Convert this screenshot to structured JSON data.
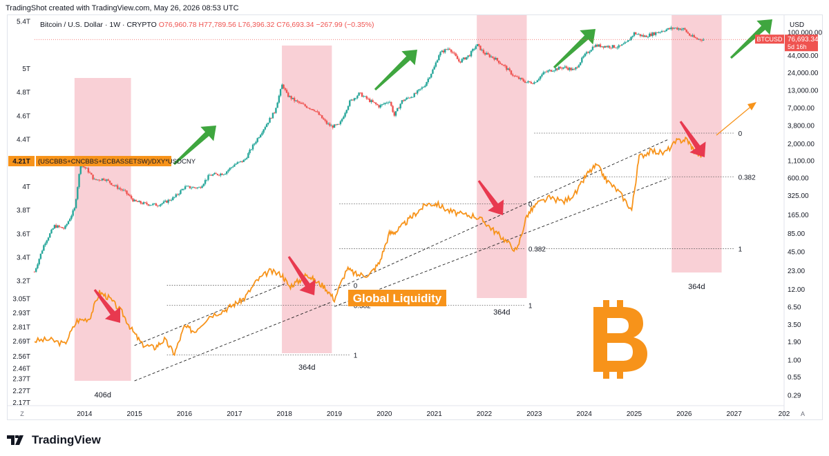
{
  "header": {
    "text": "TradingShot created with TradingView.com, May 26, 2026 08:53 UTC"
  },
  "legend": {
    "symbol": "Bitcoin / U.S. Dollar · 1W · CRYPTO",
    "o": "O76,960.78",
    "h": "H77,789.56",
    "l": "L76,396.32",
    "c": "C76,693.34",
    "chg": "−267.99 (−0.35%)"
  },
  "liquidity_label": "(USCBBS+CNCBBS+ECBASSETSW)/DXY*USDCNY",
  "liquidity_value": "4.21T",
  "title_overlay": "Global Liquidity",
  "price_badge": {
    "symbol": "BTCUSD",
    "price": "76,693.34",
    "countdown": "5d 16h"
  },
  "currency": "USD",
  "footer": {
    "brand": "TradingView"
  },
  "colors": {
    "liquidity": "#f7931a",
    "up": "#26a69a",
    "down": "#ef5350",
    "highlight": "#f8c8cf",
    "arrow_up": "#3fa63f",
    "arrow_down": "#e8394f"
  },
  "chart_data": {
    "type": "line",
    "x_axis": {
      "ticks": [
        "2014",
        "2015",
        "2016",
        "2017",
        "2018",
        "2019",
        "2020",
        "2021",
        "2022",
        "2023",
        "2024",
        "2025",
        "2026",
        "2027",
        "202"
      ],
      "range": [
        2013.0,
        2028.0
      ]
    },
    "left_axis": {
      "ticks": [
        "5.4T",
        "5T",
        "4.8T",
        "4.6T",
        "4.4T",
        "4.21T",
        "4T",
        "3.8T",
        "3.6T",
        "3.4T",
        "3.2T",
        "3.05T",
        "2.93T",
        "2.81T",
        "2.69T",
        "2.56T",
        "2.46T",
        "2.37T",
        "2.27T",
        "2.17T"
      ]
    },
    "right_axis": {
      "scale": "log",
      "ticks": [
        "100,000.00",
        "44,000.00",
        "24,000.00",
        "13,000.00",
        "7,000.00",
        "3,800.00",
        "2,000.00",
        "1,100.00",
        "600.00",
        "325.00",
        "165.00",
        "85.00",
        "45.00",
        "23.00",
        "12.00",
        "6.50",
        "3.50",
        "1.90",
        "1.00",
        "0.55",
        "0.29"
      ]
    },
    "series": [
      {
        "name": "BTCUSD",
        "style": "candles",
        "x": [
          2013.0,
          2013.2,
          2013.4,
          2013.6,
          2013.8,
          2013.92,
          2014.05,
          2014.2,
          2014.4,
          2014.6,
          2014.8,
          2015.0,
          2015.2,
          2015.45,
          2015.6,
          2015.8,
          2016.0,
          2016.3,
          2016.5,
          2016.8,
          2017.0,
          2017.2,
          2017.4,
          2017.6,
          2017.8,
          2017.96,
          2018.05,
          2018.2,
          2018.4,
          2018.6,
          2018.85,
          2018.95,
          2019.1,
          2019.3,
          2019.5,
          2019.7,
          2019.9,
          2020.1,
          2020.2,
          2020.35,
          2020.6,
          2020.8,
          2021.0,
          2021.1,
          2021.3,
          2021.5,
          2021.7,
          2021.85,
          2022.0,
          2022.2,
          2022.4,
          2022.6,
          2022.85,
          2023.0,
          2023.2,
          2023.4,
          2023.6,
          2023.8,
          2024.0,
          2024.2,
          2024.5,
          2024.7,
          2024.85,
          2025.0,
          2025.2,
          2025.4,
          2025.6,
          2025.8,
          2026.0,
          2026.1,
          2026.25,
          2026.4
        ],
        "y": [
          22,
          60,
          110,
          100,
          200,
          950,
          800,
          550,
          580,
          450,
          370,
          260,
          240,
          230,
          250,
          300,
          430,
          420,
          650,
          700,
          950,
          1100,
          2000,
          3500,
          6000,
          16000,
          11000,
          9000,
          7500,
          6500,
          4000,
          3600,
          3800,
          8500,
          11500,
          9000,
          7300,
          9000,
          5300,
          8800,
          11000,
          15000,
          29000,
          47000,
          57000,
          35000,
          44000,
          64000,
          47000,
          40000,
          30000,
          21000,
          17000,
          17000,
          24000,
          27000,
          29000,
          26000,
          43000,
          62000,
          60000,
          59000,
          68000,
          96000,
          85000,
          95000,
          107000,
          115000,
          110000,
          90000,
          78000,
          76693
        ]
      },
      {
        "name": "Global Liquidity",
        "style": "line",
        "x": [
          2013.0,
          2013.3,
          2013.6,
          2013.85,
          2014.1,
          2014.3,
          2014.5,
          2014.75,
          2014.95,
          2015.15,
          2015.4,
          2015.6,
          2015.8,
          2016.0,
          2016.2,
          2016.5,
          2016.8,
          2017.0,
          2017.2,
          2017.45,
          2017.7,
          2017.95,
          2018.1,
          2018.3,
          2018.45,
          2018.6,
          2018.8,
          2019.0,
          2019.25,
          2019.45,
          2019.7,
          2019.9,
          2020.1,
          2020.25,
          2020.45,
          2020.65,
          2020.85,
          2021.05,
          2021.3,
          2021.55,
          2021.8,
          2022.0,
          2022.2,
          2022.4,
          2022.65,
          2022.85,
          2023.05,
          2023.3,
          2023.6,
          2023.85,
          2024.05,
          2024.25,
          2024.45,
          2024.7,
          2024.95,
          2025.1,
          2025.35,
          2025.6,
          2025.85,
          2026.05,
          2026.2,
          2026.35
        ],
        "y": [
          2.69,
          2.7,
          2.66,
          2.86,
          2.88,
          3.1,
          3.05,
          2.93,
          2.78,
          2.66,
          2.63,
          2.7,
          2.58,
          2.81,
          2.77,
          2.9,
          2.95,
          3.0,
          3.05,
          3.2,
          3.28,
          3.25,
          3.15,
          3.2,
          3.26,
          3.2,
          3.15,
          3.04,
          3.3,
          3.25,
          3.25,
          3.35,
          3.6,
          3.62,
          3.7,
          3.78,
          3.85,
          3.85,
          3.79,
          3.76,
          3.75,
          3.7,
          3.62,
          3.55,
          3.45,
          3.75,
          3.85,
          3.9,
          3.87,
          3.95,
          4.1,
          4.18,
          4.05,
          3.95,
          3.8,
          4.25,
          4.3,
          4.28,
          4.38,
          4.4,
          4.3,
          4.25
        ]
      }
    ],
    "channels": [
      {
        "name": "2015-2018 channel",
        "upper": [
          [
            2015.0,
            2.65
          ],
          [
            2018.05,
            3.18
          ]
        ],
        "lower": [
          [
            2015.0,
            2.35
          ],
          [
            2018.95,
            3.02
          ]
        ]
      },
      {
        "name": "2019-2025 channel",
        "upper": [
          [
            2019.0,
            3.12
          ],
          [
            2025.7,
            4.4
          ]
        ],
        "lower": [
          [
            2019.0,
            2.98
          ],
          [
            2025.7,
            4.07
          ]
        ]
      }
    ],
    "fib_levels": [
      {
        "label": "0",
        "y": 3.16,
        "x": [
          2015.65,
          2019.3
        ]
      },
      {
        "label": "0.382",
        "y": 2.99,
        "x": [
          2015.65,
          2019.3
        ]
      },
      {
        "label": "1",
        "y": 2.57,
        "x": [
          2015.65,
          2019.3
        ]
      },
      {
        "label": "0",
        "y": 3.85,
        "x": [
          2019.1,
          2022.8
        ]
      },
      {
        "label": "0.382",
        "y": 3.47,
        "x": [
          2019.1,
          2022.8
        ]
      },
      {
        "label": "1",
        "y": 2.99,
        "x": [
          2019.1,
          2022.8
        ]
      },
      {
        "label": "0",
        "y": 4.45,
        "x": [
          2023.0,
          2027.0
        ]
      },
      {
        "label": "0.382",
        "y": 4.08,
        "x": [
          2023.0,
          2027.0
        ]
      },
      {
        "label": "1",
        "y": 3.47,
        "x": [
          2023.0,
          2027.0
        ]
      }
    ],
    "highlight_zones": [
      {
        "label": "406d",
        "x": [
          2013.8,
          2014.93
        ]
      },
      {
        "label": "364d",
        "x": [
          2017.95,
          2018.95
        ]
      },
      {
        "label": "364d",
        "x": [
          2021.85,
          2022.85
        ]
      },
      {
        "label": "364d",
        "x": [
          2025.75,
          2026.75
        ]
      }
    ],
    "last_price": 76693.34,
    "grid": false
  }
}
